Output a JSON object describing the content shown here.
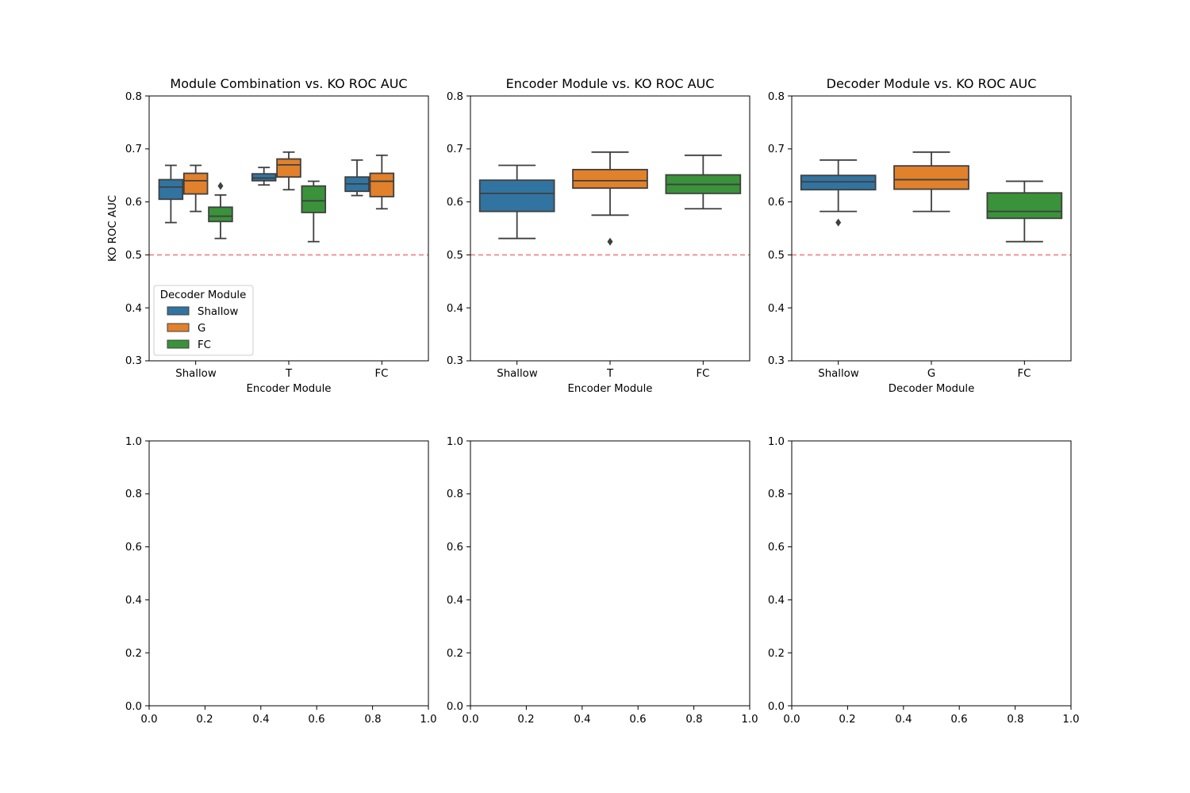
{
  "colors": {
    "Shallow": "#3274a1",
    "G": "#e1812c",
    "FC": "#3a923a",
    "T": "#e1812c",
    "box_edge": "#3f3f3f",
    "reference_line": "#f08080"
  },
  "chart_data": [
    {
      "type": "box",
      "title": "Module Combination vs. KO ROC AUC",
      "xlabel": "Encoder Module",
      "ylabel": "KO ROC AUC",
      "categories": [
        "Shallow",
        "T",
        "FC"
      ],
      "ylim": [
        0.3,
        0.8
      ],
      "yticks": [
        "0.3",
        "0.4",
        "0.5",
        "0.6",
        "0.7",
        "0.8"
      ],
      "reference_line": 0.5,
      "grid": false,
      "legend": {
        "title": "Decoder Module",
        "placement": "lower-left",
        "entries": [
          "Shallow",
          "G",
          "FC"
        ]
      },
      "series": [
        {
          "name": "Shallow",
          "boxes": [
            {
              "category": "Shallow",
              "whislo": 0.561,
              "q1": 0.605,
              "med": 0.628,
              "q3": 0.642,
              "whishi": 0.669,
              "fliers": []
            },
            {
              "category": "T",
              "whislo": 0.632,
              "q1": 0.64,
              "med": 0.645,
              "q3": 0.653,
              "whishi": 0.665,
              "fliers": []
            },
            {
              "category": "FC",
              "whislo": 0.612,
              "q1": 0.62,
              "med": 0.634,
              "q3": 0.647,
              "whishi": 0.679,
              "fliers": []
            }
          ]
        },
        {
          "name": "G",
          "boxes": [
            {
              "category": "Shallow",
              "whislo": 0.582,
              "q1": 0.615,
              "med": 0.64,
              "q3": 0.654,
              "whishi": 0.669,
              "fliers": []
            },
            {
              "category": "T",
              "whislo": 0.623,
              "q1": 0.647,
              "med": 0.67,
              "q3": 0.681,
              "whishi": 0.694,
              "fliers": []
            },
            {
              "category": "FC",
              "whislo": 0.587,
              "q1": 0.61,
              "med": 0.639,
              "q3": 0.654,
              "whishi": 0.688,
              "fliers": []
            }
          ]
        },
        {
          "name": "FC",
          "boxes": [
            {
              "category": "Shallow",
              "whislo": 0.531,
              "q1": 0.563,
              "med": 0.573,
              "q3": 0.59,
              "whishi": 0.613,
              "fliers": [
                0.63
              ]
            },
            {
              "category": "T",
              "whislo": 0.525,
              "q1": 0.58,
              "med": 0.602,
              "q3": 0.63,
              "whishi": 0.639,
              "fliers": []
            },
            {
              "category": "FC",
              "whislo": null,
              "q1": null,
              "med": null,
              "q3": null,
              "whishi": null,
              "fliers": []
            }
          ]
        }
      ]
    },
    {
      "type": "box",
      "title": "Encoder Module vs. KO ROC AUC",
      "xlabel": "Encoder Module",
      "ylabel": "",
      "categories": [
        "Shallow",
        "T",
        "FC"
      ],
      "ylim": [
        0.3,
        0.8
      ],
      "yticks": [
        "0.3",
        "0.4",
        "0.5",
        "0.6",
        "0.7",
        "0.8"
      ],
      "reference_line": 0.5,
      "grid": false,
      "boxes": [
        {
          "category": "Shallow",
          "whislo": 0.531,
          "q1": 0.582,
          "med": 0.616,
          "q3": 0.641,
          "whishi": 0.669,
          "fliers": []
        },
        {
          "category": "T",
          "whislo": 0.575,
          "q1": 0.626,
          "med": 0.64,
          "q3": 0.661,
          "whishi": 0.694,
          "fliers": [
            0.525
          ]
        },
        {
          "category": "FC",
          "whislo": 0.587,
          "q1": 0.616,
          "med": 0.633,
          "q3": 0.651,
          "whishi": 0.688,
          "fliers": []
        }
      ]
    },
    {
      "type": "box",
      "title": "Decoder Module vs. KO ROC AUC",
      "xlabel": "Decoder Module",
      "ylabel": "",
      "categories": [
        "Shallow",
        "G",
        "FC"
      ],
      "ylim": [
        0.3,
        0.8
      ],
      "yticks": [
        "0.3",
        "0.4",
        "0.5",
        "0.6",
        "0.7",
        "0.8"
      ],
      "reference_line": 0.5,
      "grid": false,
      "boxes": [
        {
          "category": "Shallow",
          "whislo": 0.582,
          "q1": 0.623,
          "med": 0.638,
          "q3": 0.65,
          "whishi": 0.679,
          "fliers": [
            0.561
          ]
        },
        {
          "category": "G",
          "whislo": 0.582,
          "q1": 0.624,
          "med": 0.642,
          "q3": 0.668,
          "whishi": 0.694,
          "fliers": []
        },
        {
          "category": "FC",
          "whislo": 0.525,
          "q1": 0.569,
          "med": 0.582,
          "q3": 0.617,
          "whishi": 0.639,
          "fliers": []
        }
      ]
    },
    {
      "type": "empty",
      "title": "",
      "xlim": [
        0.0,
        1.0
      ],
      "ylim": [
        0.0,
        1.0
      ],
      "xticks": [
        "0.0",
        "0.2",
        "0.4",
        "0.6",
        "0.8",
        "1.0"
      ],
      "yticks": [
        "0.0",
        "0.2",
        "0.4",
        "0.6",
        "0.8",
        "1.0"
      ]
    },
    {
      "type": "empty",
      "title": "",
      "xlim": [
        0.0,
        1.0
      ],
      "ylim": [
        0.0,
        1.0
      ],
      "xticks": [
        "0.0",
        "0.2",
        "0.4",
        "0.6",
        "0.8",
        "1.0"
      ],
      "yticks": [
        "0.0",
        "0.2",
        "0.4",
        "0.6",
        "0.8",
        "1.0"
      ]
    },
    {
      "type": "empty",
      "title": "",
      "xlim": [
        0.0,
        1.0
      ],
      "ylim": [
        0.0,
        1.0
      ],
      "xticks": [
        "0.0",
        "0.2",
        "0.4",
        "0.6",
        "0.8",
        "1.0"
      ],
      "yticks": [
        "0.0",
        "0.2",
        "0.4",
        "0.6",
        "0.8",
        "1.0"
      ]
    }
  ]
}
